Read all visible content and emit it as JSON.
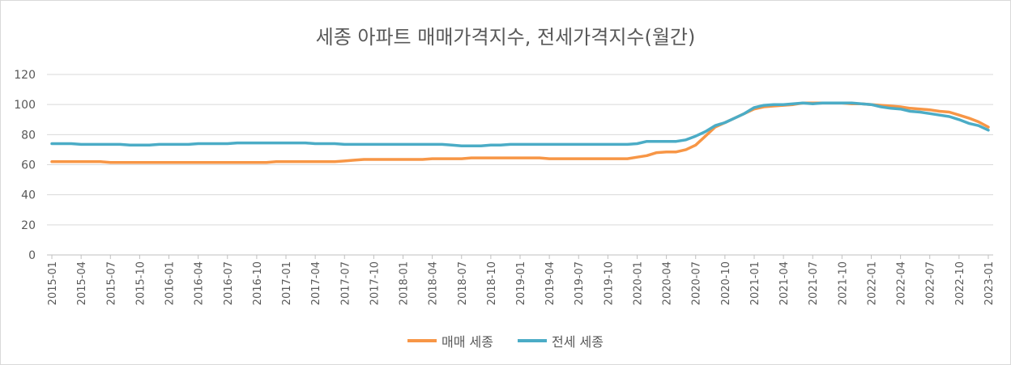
{
  "chart_data": {
    "type": "line",
    "title": "세종 아파트 매매가격지수, 전세가격지수(월간)",
    "xlabel": "",
    "ylabel": "",
    "ylim": [
      0,
      120
    ],
    "yticks": [
      0,
      20,
      40,
      60,
      80,
      100,
      120
    ],
    "grid": true,
    "legend_position": "bottom",
    "x": [
      "2015-01",
      "2015-02",
      "2015-03",
      "2015-04",
      "2015-05",
      "2015-06",
      "2015-07",
      "2015-08",
      "2015-09",
      "2015-10",
      "2015-11",
      "2015-12",
      "2016-01",
      "2016-02",
      "2016-03",
      "2016-04",
      "2016-05",
      "2016-06",
      "2016-07",
      "2016-08",
      "2016-09",
      "2016-10",
      "2016-11",
      "2016-12",
      "2017-01",
      "2017-02",
      "2017-03",
      "2017-04",
      "2017-05",
      "2017-06",
      "2017-07",
      "2017-08",
      "2017-09",
      "2017-10",
      "2017-11",
      "2017-12",
      "2018-01",
      "2018-02",
      "2018-03",
      "2018-04",
      "2018-05",
      "2018-06",
      "2018-07",
      "2018-08",
      "2018-09",
      "2018-10",
      "2018-11",
      "2018-12",
      "2019-01",
      "2019-02",
      "2019-03",
      "2019-04",
      "2019-05",
      "2019-06",
      "2019-07",
      "2019-08",
      "2019-09",
      "2019-10",
      "2019-11",
      "2019-12",
      "2020-01",
      "2020-02",
      "2020-03",
      "2020-04",
      "2020-05",
      "2020-06",
      "2020-07",
      "2020-08",
      "2020-09",
      "2020-10",
      "2020-11",
      "2020-12",
      "2021-01",
      "2021-02",
      "2021-03",
      "2021-04",
      "2021-05",
      "2021-06",
      "2021-07",
      "2021-08",
      "2021-09",
      "2021-10",
      "2021-11",
      "2021-12",
      "2022-01",
      "2022-02",
      "2022-03",
      "2022-04",
      "2022-05",
      "2022-06",
      "2022-07",
      "2022-08",
      "2022-09",
      "2022-10",
      "2022-11",
      "2022-12",
      "2023-01"
    ],
    "xtick_labels": [
      "2015-01",
      "2015-04",
      "2015-07",
      "2015-10",
      "2016-01",
      "2016-04",
      "2016-07",
      "2016-10",
      "2017-01",
      "2017-04",
      "2017-07",
      "2017-10",
      "2018-01",
      "2018-04",
      "2018-07",
      "2018-10",
      "2019-01",
      "2019-04",
      "2019-07",
      "2019-10",
      "2020-01",
      "2020-04",
      "2020-07",
      "2020-10",
      "2021-01",
      "2021-04",
      "2021-07",
      "2021-10",
      "2022-01",
      "2022-04",
      "2022-07",
      "2022-10",
      "2023-01"
    ],
    "series": [
      {
        "name": "매매 세종",
        "color": "#F79646",
        "values": [
          62,
          62,
          62,
          62,
          62,
          62,
          61.5,
          61.5,
          61.5,
          61.5,
          61.5,
          61.5,
          61.5,
          61.5,
          61.5,
          61.5,
          61.5,
          61.5,
          61.5,
          61.5,
          61.5,
          61.5,
          61.5,
          62,
          62,
          62,
          62,
          62,
          62,
          62,
          62.5,
          63,
          63.5,
          63.5,
          63.5,
          63.5,
          63.5,
          63.5,
          63.5,
          64,
          64,
          64,
          64,
          64.5,
          64.5,
          64.5,
          64.5,
          64.5,
          64.5,
          64.5,
          64.5,
          64,
          64,
          64,
          64,
          64,
          64,
          64,
          64,
          64,
          65,
          66,
          68,
          68.5,
          68.5,
          70,
          73,
          79,
          85,
          88,
          91,
          94,
          97,
          98.5,
          99,
          99.5,
          100,
          101,
          101,
          101,
          101,
          101,
          100.5,
          100.5,
          100,
          99.5,
          99,
          98.5,
          97.5,
          97,
          96.5,
          95.5,
          95,
          93,
          91,
          88.5,
          85
        ]
      },
      {
        "name": "전세 세종",
        "color": "#4BACC6",
        "values": [
          74,
          74,
          74,
          73.5,
          73.5,
          73.5,
          73.5,
          73.5,
          73,
          73,
          73,
          73.5,
          73.5,
          73.5,
          73.5,
          74,
          74,
          74,
          74,
          74.5,
          74.5,
          74.5,
          74.5,
          74.5,
          74.5,
          74.5,
          74.5,
          74,
          74,
          74,
          73.5,
          73.5,
          73.5,
          73.5,
          73.5,
          73.5,
          73.5,
          73.5,
          73.5,
          73.5,
          73.5,
          73,
          72.5,
          72.5,
          72.5,
          73,
          73,
          73.5,
          73.5,
          73.5,
          73.5,
          73.5,
          73.5,
          73.5,
          73.5,
          73.5,
          73.5,
          73.5,
          73.5,
          73.5,
          74,
          75.5,
          75.5,
          75.5,
          75.5,
          76.5,
          79,
          82,
          86,
          88,
          91,
          94,
          98,
          99.5,
          100,
          100,
          100.5,
          101,
          100.5,
          101,
          101,
          101,
          101,
          100.5,
          100,
          98.5,
          97.5,
          97,
          95.5,
          95,
          94,
          93,
          92,
          90,
          87.5,
          86,
          83
        ]
      }
    ]
  }
}
